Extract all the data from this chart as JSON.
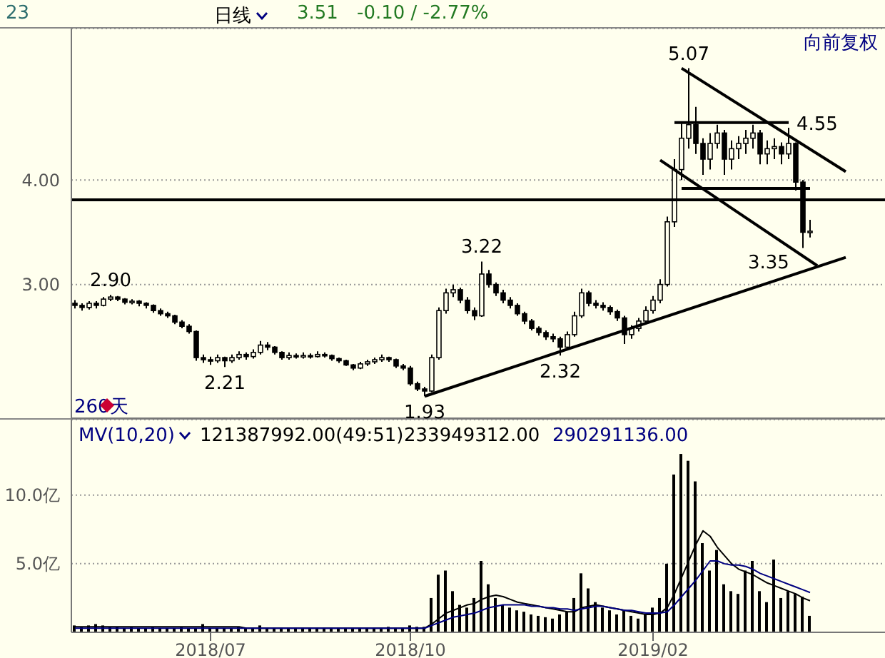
{
  "chart_data": [
    {
      "type": "candlestick",
      "color": "#000000",
      "marker": "none",
      "grid": "y",
      "tick_labels": "y",
      "annotations": [
        "23",
        "日线",
        "3.51",
        "-0.10 / -2.77%",
        "向前复权",
        "260天",
        {
          "text": "5.07",
          "y": 5.07
        },
        {
          "text": "2.90",
          "y": 2.9
        },
        {
          "text": "2.21",
          "y": 2.21
        },
        {
          "text": "1.93",
          "y": 1.93
        },
        {
          "text": "3.22",
          "y": 3.22
        },
        {
          "text": "2.32",
          "y": 2.32
        },
        "3.35",
        "4.55"
      ],
      "categories": [
        null,
        null,
        null,
        null,
        null,
        null,
        null,
        null,
        null,
        null,
        null,
        null,
        null,
        null,
        null,
        null,
        null,
        null,
        null,
        "2018/07",
        null,
        null,
        null,
        null,
        null,
        null,
        null,
        null,
        null,
        null,
        null,
        null,
        null,
        null,
        null,
        null,
        null,
        null,
        null,
        null,
        null,
        null,
        null,
        null,
        null,
        null,
        null,
        "2018/10",
        null,
        null,
        null,
        null,
        null,
        null,
        null,
        null,
        null,
        null,
        null,
        null,
        null,
        null,
        null,
        null,
        null,
        null,
        null,
        null,
        null,
        null,
        null,
        null,
        null,
        null,
        null,
        null,
        null,
        null,
        null,
        null,
        null,
        "2019/02",
        null,
        null,
        null,
        null,
        null,
        null,
        null,
        null,
        null,
        null,
        null,
        null,
        null,
        null,
        null,
        null,
        null,
        null,
        null,
        null,
        null,
        null,
        null,
        null,
        null,
        null,
        null,
        null,
        null,
        null,
        null,
        null
      ],
      "ylim": [
        1.72,
        5.45
      ],
      "yticks": [
        {
          "value": 3,
          "label": "3.00"
        },
        {
          "value": 4,
          "label": "4.00"
        }
      ],
      "ref_lines": [
        {
          "axis": "y",
          "value": 3.81,
          "color": "#000000"
        }
      ],
      "ohlc": [
        [
          2.82,
          2.85,
          2.77,
          2.8
        ],
        [
          2.8,
          2.82,
          2.75,
          2.78
        ],
        [
          2.78,
          2.84,
          2.76,
          2.82
        ],
        [
          2.82,
          2.84,
          2.77,
          2.8
        ],
        [
          2.8,
          2.88,
          2.79,
          2.86
        ],
        [
          2.86,
          2.9,
          2.84,
          2.88
        ],
        [
          2.88,
          2.89,
          2.84,
          2.86
        ],
        [
          2.86,
          2.87,
          2.81,
          2.83
        ],
        [
          2.83,
          2.86,
          2.81,
          2.84
        ],
        [
          2.84,
          2.85,
          2.79,
          2.82
        ],
        [
          2.82,
          2.83,
          2.77,
          2.8
        ],
        [
          2.8,
          2.81,
          2.73,
          2.75
        ],
        [
          2.75,
          2.77,
          2.7,
          2.72
        ],
        [
          2.72,
          2.74,
          2.68,
          2.7
        ],
        [
          2.7,
          2.71,
          2.62,
          2.64
        ],
        [
          2.64,
          2.66,
          2.58,
          2.6
        ],
        [
          2.6,
          2.62,
          2.53,
          2.55
        ],
        [
          2.55,
          2.56,
          2.27,
          2.3
        ],
        [
          2.3,
          2.33,
          2.25,
          2.28
        ],
        [
          2.28,
          2.31,
          2.23,
          2.27
        ],
        [
          2.27,
          2.33,
          2.25,
          2.3
        ],
        [
          2.3,
          2.31,
          2.21,
          2.27
        ],
        [
          2.27,
          2.33,
          2.25,
          2.3
        ],
        [
          2.3,
          2.36,
          2.28,
          2.33
        ],
        [
          2.33,
          2.35,
          2.28,
          2.31
        ],
        [
          2.31,
          2.38,
          2.29,
          2.35
        ],
        [
          2.35,
          2.46,
          2.33,
          2.42
        ],
        [
          2.42,
          2.45,
          2.37,
          2.4
        ],
        [
          2.4,
          2.41,
          2.33,
          2.35
        ],
        [
          2.35,
          2.36,
          2.28,
          2.3
        ],
        [
          2.3,
          2.35,
          2.28,
          2.32
        ],
        [
          2.32,
          2.34,
          2.29,
          2.31
        ],
        [
          2.31,
          2.35,
          2.29,
          2.32
        ],
        [
          2.32,
          2.34,
          2.29,
          2.31
        ],
        [
          2.31,
          2.36,
          2.3,
          2.33
        ],
        [
          2.33,
          2.35,
          2.3,
          2.32
        ],
        [
          2.32,
          2.33,
          2.27,
          2.29
        ],
        [
          2.29,
          2.3,
          2.25,
          2.27
        ],
        [
          2.27,
          2.28,
          2.22,
          2.23
        ],
        [
          2.23,
          2.24,
          2.18,
          2.2
        ],
        [
          2.2,
          2.26,
          2.19,
          2.24
        ],
        [
          2.24,
          2.28,
          2.22,
          2.26
        ],
        [
          2.26,
          2.3,
          2.24,
          2.28
        ],
        [
          2.28,
          2.33,
          2.26,
          2.3
        ],
        [
          2.3,
          2.31,
          2.26,
          2.28
        ],
        [
          2.28,
          2.29,
          2.2,
          2.22
        ],
        [
          2.22,
          2.24,
          2.18,
          2.2
        ],
        [
          2.2,
          2.22,
          2.03,
          2.05
        ],
        [
          2.05,
          2.07,
          1.98,
          2.0
        ],
        [
          2.0,
          2.02,
          1.93,
          1.98
        ],
        [
          1.98,
          2.33,
          1.97,
          2.3
        ],
        [
          2.3,
          2.78,
          2.28,
          2.75
        ],
        [
          2.75,
          2.96,
          2.72,
          2.92
        ],
        [
          2.92,
          3.0,
          2.88,
          2.95
        ],
        [
          2.95,
          2.97,
          2.82,
          2.85
        ],
        [
          2.85,
          2.88,
          2.72,
          2.75
        ],
        [
          2.75,
          2.78,
          2.66,
          2.7
        ],
        [
          2.7,
          3.22,
          2.69,
          3.1
        ],
        [
          3.1,
          3.14,
          2.97,
          3.0
        ],
        [
          3.0,
          3.02,
          2.89,
          2.92
        ],
        [
          2.92,
          2.95,
          2.82,
          2.85
        ],
        [
          2.85,
          2.88,
          2.77,
          2.8
        ],
        [
          2.8,
          2.82,
          2.7,
          2.72
        ],
        [
          2.72,
          2.74,
          2.62,
          2.65
        ],
        [
          2.65,
          2.67,
          2.56,
          2.58
        ],
        [
          2.58,
          2.6,
          2.51,
          2.54
        ],
        [
          2.54,
          2.56,
          2.47,
          2.5
        ],
        [
          2.5,
          2.53,
          2.45,
          2.48
        ],
        [
          2.48,
          2.5,
          2.32,
          2.4
        ],
        [
          2.4,
          2.55,
          2.38,
          2.52
        ],
        [
          2.52,
          2.74,
          2.5,
          2.7
        ],
        [
          2.7,
          2.96,
          2.68,
          2.92
        ],
        [
          2.92,
          2.94,
          2.79,
          2.82
        ],
        [
          2.82,
          2.85,
          2.77,
          2.8
        ],
        [
          2.8,
          2.83,
          2.75,
          2.78
        ],
        [
          2.78,
          2.8,
          2.71,
          2.74
        ],
        [
          2.74,
          2.76,
          2.65,
          2.68
        ],
        [
          2.68,
          2.7,
          2.43,
          2.52
        ],
        [
          2.52,
          2.61,
          2.48,
          2.58
        ],
        [
          2.58,
          2.68,
          2.55,
          2.65
        ],
        [
          2.65,
          2.79,
          2.62,
          2.75
        ],
        [
          2.75,
          2.89,
          2.72,
          2.85
        ],
        [
          2.85,
          3.05,
          2.82,
          3.0
        ],
        [
          3.0,
          3.65,
          2.98,
          3.6
        ],
        [
          3.6,
          4.2,
          3.55,
          4.1
        ],
        [
          4.1,
          4.54,
          4.0,
          4.4
        ],
        [
          4.4,
          5.07,
          4.3,
          4.53
        ],
        [
          4.53,
          4.7,
          4.25,
          4.35
        ],
        [
          4.35,
          4.4,
          4.05,
          4.2
        ],
        [
          4.2,
          4.45,
          4.1,
          4.35
        ],
        [
          4.35,
          4.53,
          4.3,
          4.45
        ],
        [
          4.45,
          4.48,
          4.05,
          4.2
        ],
        [
          4.2,
          4.38,
          4.1,
          4.3
        ],
        [
          4.3,
          4.42,
          4.2,
          4.35
        ],
        [
          4.35,
          4.48,
          4.25,
          4.4
        ],
        [
          4.4,
          4.53,
          4.3,
          4.45
        ],
        [
          4.45,
          4.48,
          4.15,
          4.25
        ],
        [
          4.25,
          4.38,
          4.15,
          4.3
        ],
        [
          4.3,
          4.4,
          4.2,
          4.32
        ],
        [
          4.32,
          4.36,
          4.15,
          4.25
        ],
        [
          4.25,
          4.5,
          4.2,
          4.35
        ],
        [
          4.35,
          4.36,
          3.9,
          3.98
        ],
        [
          3.98,
          4.0,
          3.35,
          3.5
        ],
        [
          3.5,
          3.62,
          3.45,
          3.51
        ],
        null,
        null,
        null,
        null,
        null,
        null,
        null,
        null,
        null,
        null
      ],
      "series": [
        {
          "type": "line",
          "color": "#000000",
          "values": [
            null,
            null,
            null,
            null,
            null,
            null,
            null,
            null,
            null,
            null,
            null,
            null,
            null,
            null,
            null,
            null,
            null,
            null,
            null,
            null,
            null,
            null,
            null,
            null,
            null,
            null,
            null,
            null,
            null,
            null,
            null,
            null,
            null,
            null,
            null,
            null,
            null,
            null,
            null,
            null,
            null,
            null,
            null,
            null,
            null,
            null,
            null,
            null,
            null,
            1.93,
            null,
            null,
            null,
            null,
            null,
            null,
            null,
            null,
            null,
            null,
            null,
            null,
            null,
            null,
            null,
            null,
            null,
            null,
            null,
            null,
            null,
            null,
            null,
            null,
            null,
            null,
            null,
            null,
            null,
            null,
            null,
            null,
            null,
            null,
            null,
            null,
            null,
            null,
            null,
            null,
            null,
            null,
            null,
            null,
            null,
            null,
            null,
            null,
            null,
            null,
            null,
            null,
            null,
            null,
            null,
            null,
            null,
            null,
            3.26,
            null,
            null,
            null,
            null,
            null
          ]
        },
        {
          "type": "line",
          "color": "#000000",
          "values": [
            null,
            null,
            null,
            null,
            null,
            null,
            null,
            null,
            null,
            null,
            null,
            null,
            null,
            null,
            null,
            null,
            null,
            null,
            null,
            null,
            null,
            null,
            null,
            null,
            null,
            null,
            null,
            null,
            null,
            null,
            null,
            null,
            null,
            null,
            null,
            null,
            null,
            null,
            null,
            null,
            null,
            null,
            null,
            null,
            null,
            null,
            null,
            null,
            null,
            null,
            null,
            null,
            null,
            null,
            null,
            null,
            null,
            null,
            null,
            null,
            null,
            null,
            null,
            null,
            null,
            null,
            null,
            null,
            null,
            null,
            null,
            null,
            null,
            null,
            null,
            null,
            null,
            null,
            null,
            null,
            null,
            null,
            null,
            null,
            null,
            5.07,
            null,
            null,
            null,
            null,
            null,
            null,
            null,
            null,
            null,
            null,
            null,
            null,
            null,
            null,
            null,
            null,
            null,
            null,
            null,
            null,
            null,
            null,
            4.08,
            null,
            null,
            null,
            null,
            null
          ]
        },
        {
          "type": "line",
          "color": "#000000",
          "values": [
            null,
            null,
            null,
            null,
            null,
            null,
            null,
            null,
            null,
            null,
            null,
            null,
            null,
            null,
            null,
            null,
            null,
            null,
            null,
            null,
            null,
            null,
            null,
            null,
            null,
            null,
            null,
            null,
            null,
            null,
            null,
            null,
            null,
            null,
            null,
            null,
            null,
            null,
            null,
            null,
            null,
            null,
            null,
            null,
            null,
            null,
            null,
            null,
            null,
            null,
            null,
            null,
            null,
            null,
            null,
            null,
            null,
            null,
            null,
            null,
            null,
            null,
            null,
            null,
            null,
            null,
            null,
            null,
            null,
            null,
            null,
            null,
            null,
            null,
            null,
            null,
            null,
            null,
            null,
            null,
            null,
            null,
            4.19,
            null,
            null,
            null,
            null,
            null,
            null,
            null,
            null,
            null,
            null,
            null,
            null,
            null,
            null,
            null,
            null,
            null,
            null,
            null,
            null,
            null,
            3.18,
            null,
            null,
            null,
            null,
            null,
            null,
            null,
            null,
            null
          ]
        },
        {
          "type": "line",
          "color": "#000000",
          "values": [
            null,
            null,
            null,
            null,
            null,
            null,
            null,
            null,
            null,
            null,
            null,
            null,
            null,
            null,
            null,
            null,
            null,
            null,
            null,
            null,
            null,
            null,
            null,
            null,
            null,
            null,
            null,
            null,
            null,
            null,
            null,
            null,
            null,
            null,
            null,
            null,
            null,
            null,
            null,
            null,
            null,
            null,
            null,
            null,
            null,
            null,
            null,
            null,
            null,
            null,
            null,
            null,
            null,
            null,
            null,
            null,
            null,
            null,
            null,
            null,
            null,
            null,
            null,
            null,
            null,
            null,
            null,
            null,
            null,
            null,
            null,
            null,
            null,
            null,
            null,
            null,
            null,
            null,
            null,
            null,
            null,
            null,
            null,
            null,
            4.55,
            null,
            null,
            null,
            null,
            null,
            null,
            null,
            null,
            null,
            null,
            null,
            null,
            null,
            null,
            null,
            4.55,
            null,
            null,
            null,
            null,
            null,
            null,
            null,
            null,
            null,
            null,
            null,
            null,
            null
          ]
        },
        {
          "type": "line",
          "color": "#000000",
          "values": [
            null,
            null,
            null,
            null,
            null,
            null,
            null,
            null,
            null,
            null,
            null,
            null,
            null,
            null,
            null,
            null,
            null,
            null,
            null,
            null,
            null,
            null,
            null,
            null,
            null,
            null,
            null,
            null,
            null,
            null,
            null,
            null,
            null,
            null,
            null,
            null,
            null,
            null,
            null,
            null,
            null,
            null,
            null,
            null,
            null,
            null,
            null,
            null,
            null,
            null,
            null,
            null,
            null,
            null,
            null,
            null,
            null,
            null,
            null,
            null,
            null,
            null,
            null,
            null,
            null,
            null,
            null,
            null,
            null,
            null,
            null,
            null,
            null,
            null,
            null,
            null,
            null,
            null,
            null,
            null,
            null,
            null,
            null,
            null,
            null,
            3.92,
            null,
            null,
            null,
            null,
            null,
            null,
            null,
            null,
            null,
            null,
            null,
            null,
            null,
            null,
            null,
            null,
            null,
            3.92,
            null,
            null,
            null,
            null,
            null,
            null,
            null,
            null,
            null,
            null
          ]
        }
      ]
    },
    {
      "type": "bar",
      "marker": "none",
      "grid": "y",
      "annotations": [
        "MV(10,20)",
        "121387992.00(49:51)",
        "233949312.00",
        "290291136.00"
      ],
      "categories": [
        null,
        null,
        null,
        null,
        null,
        null,
        null,
        null,
        null,
        null,
        null,
        null,
        null,
        null,
        null,
        null,
        null,
        null,
        null,
        "2018/07",
        null,
        null,
        null,
        null,
        null,
        null,
        null,
        null,
        null,
        null,
        null,
        null,
        null,
        null,
        null,
        null,
        null,
        null,
        null,
        null,
        null,
        null,
        null,
        null,
        null,
        null,
        null,
        "2018/10",
        null,
        null,
        null,
        null,
        null,
        null,
        null,
        null,
        null,
        null,
        null,
        null,
        null,
        null,
        null,
        null,
        null,
        null,
        null,
        null,
        null,
        null,
        null,
        null,
        null,
        null,
        null,
        null,
        null,
        null,
        null,
        null,
        null,
        "2019/02",
        null,
        null,
        null,
        null,
        null,
        null,
        null,
        null,
        null,
        null,
        null,
        null,
        null,
        null,
        null,
        null,
        null,
        null,
        null,
        null,
        null,
        null,
        null,
        null,
        null,
        null,
        null,
        null,
        null,
        null,
        null,
        null
      ],
      "ylim": [
        0,
        15.5
      ],
      "yticks": [
        {
          "value": 5,
          "label": "5.0亿"
        },
        {
          "value": 10,
          "label": "10.0亿"
        }
      ],
      "series": [
        {
          "type": "bar",
          "color": "#000000",
          "values": [
            0.5,
            0.4,
            0.5,
            0.6,
            0.5,
            0.4,
            0.4,
            0.3,
            0.4,
            0.3,
            0.3,
            0.4,
            0.3,
            0.3,
            0.3,
            0.4,
            0.3,
            0.3,
            0.6,
            0.3,
            0.3,
            0.3,
            0.3,
            0.4,
            0.3,
            0.3,
            0.5,
            0.3,
            0.3,
            0.3,
            0.3,
            0.3,
            0.3,
            0.3,
            0.3,
            0.3,
            0.3,
            0.3,
            0.3,
            0.3,
            0.3,
            0.3,
            0.3,
            0.3,
            0.4,
            0.3,
            0.3,
            0.5,
            0.4,
            0.4,
            2.5,
            4.2,
            4.5,
            3.0,
            2.0,
            1.8,
            2.5,
            5.2,
            3.5,
            2.5,
            2.0,
            1.8,
            1.6,
            1.5,
            1.3,
            1.2,
            1.1,
            1.0,
            1.3,
            1.5,
            2.5,
            4.3,
            3.2,
            2.2,
            1.8,
            1.6,
            1.3,
            1.6,
            1.2,
            1.0,
            1.3,
            1.8,
            2.5,
            5.0,
            11.5,
            13.0,
            12.5,
            11.0,
            6.5,
            4.5,
            6.0,
            3.5,
            3.0,
            2.8,
            4.5,
            5.2,
            3.0,
            2.2,
            5.3,
            2.5,
            3.0,
            2.8,
            2.6,
            1.2,
            null,
            null,
            null,
            null,
            null,
            null,
            null,
            null,
            null,
            null
          ]
        },
        {
          "type": "line",
          "color": "#000000",
          "values": [
            0.4,
            0.4,
            0.4,
            0.4,
            0.4,
            0.4,
            0.4,
            0.4,
            0.4,
            0.4,
            0.4,
            0.4,
            0.4,
            0.4,
            0.4,
            0.4,
            0.4,
            0.4,
            0.4,
            0.4,
            0.4,
            0.4,
            0.4,
            0.4,
            0.3,
            0.3,
            0.3,
            0.3,
            0.3,
            0.3,
            0.3,
            0.3,
            0.3,
            0.3,
            0.3,
            0.3,
            0.3,
            0.3,
            0.3,
            0.3,
            0.3,
            0.3,
            0.3,
            0.3,
            0.3,
            0.3,
            0.3,
            0.3,
            0.3,
            0.3,
            0.6,
            1.0,
            1.4,
            1.6,
            1.8,
            2.0,
            2.1,
            2.4,
            2.6,
            2.7,
            2.6,
            2.4,
            2.2,
            2.1,
            2.0,
            1.9,
            1.8,
            1.7,
            1.6,
            1.5,
            1.5,
            1.8,
            1.9,
            2.0,
            1.9,
            1.8,
            1.7,
            1.6,
            1.5,
            1.4,
            1.3,
            1.3,
            1.4,
            1.8,
            2.8,
            4.0,
            5.2,
            6.4,
            7.4,
            7.0,
            6.2,
            5.6,
            5.0,
            4.6,
            4.4,
            4.2,
            3.9,
            3.6,
            3.4,
            3.2,
            3.0,
            2.8,
            2.5,
            2.3,
            null,
            null,
            null,
            null,
            null,
            null,
            null,
            null,
            null,
            null
          ]
        },
        {
          "type": "line",
          "color": "#000080",
          "values": [
            0.3,
            0.3,
            0.3,
            0.3,
            0.3,
            0.3,
            0.3,
            0.3,
            0.3,
            0.3,
            0.3,
            0.3,
            0.3,
            0.3,
            0.3,
            0.3,
            0.3,
            0.3,
            0.3,
            0.3,
            0.3,
            0.3,
            0.3,
            0.3,
            0.3,
            0.3,
            0.3,
            0.3,
            0.3,
            0.3,
            0.3,
            0.3,
            0.3,
            0.3,
            0.3,
            0.3,
            0.3,
            0.3,
            0.3,
            0.3,
            0.3,
            0.3,
            0.3,
            0.3,
            0.3,
            0.3,
            0.3,
            0.3,
            0.3,
            0.3,
            0.5,
            0.7,
            0.9,
            1.1,
            1.2,
            1.3,
            1.4,
            1.6,
            1.8,
            1.9,
            2.0,
            2.0,
            2.0,
            2.0,
            1.9,
            1.9,
            1.8,
            1.8,
            1.7,
            1.7,
            1.6,
            1.7,
            1.8,
            1.9,
            1.9,
            1.8,
            1.7,
            1.6,
            1.6,
            1.5,
            1.4,
            1.4,
            1.4,
            1.5,
            2.0,
            2.6,
            3.2,
            3.8,
            4.5,
            5.2,
            5.2,
            5.0,
            4.9,
            4.9,
            4.8,
            4.6,
            4.3,
            4.1,
            3.9,
            3.7,
            3.5,
            3.3,
            3.1,
            2.9,
            null,
            null,
            null,
            null,
            null,
            null,
            null,
            null,
            null,
            null
          ]
        }
      ]
    }
  ]
}
